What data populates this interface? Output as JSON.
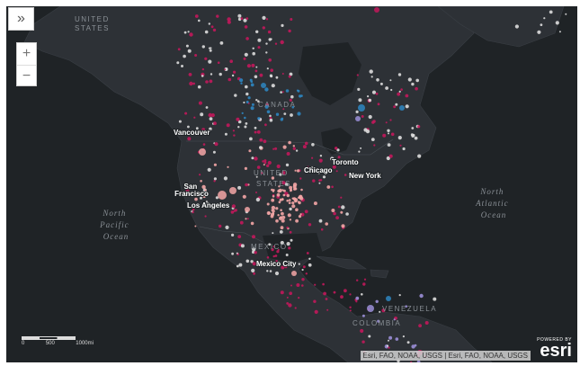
{
  "controls": {
    "expand_glyph": "»",
    "zoom_in_glyph": "+",
    "zoom_out_glyph": "−"
  },
  "countries": {
    "united_states_top": "UNITED STATES",
    "canada": "CANADA",
    "united_states": "UNITED STATES",
    "mexico": "MEXICO",
    "venezuela": "VENEZUELA",
    "colombia": "COLOMBIA"
  },
  "oceans": {
    "north_pacific": [
      "North",
      "Pacific",
      "Ocean"
    ],
    "north_atlantic": [
      "North",
      "Atlantic",
      "Ocean"
    ]
  },
  "cities": {
    "vancouver": "Vancouver",
    "san_francisco": [
      "San",
      "Francisco"
    ],
    "los_angeles": "Los Angeles",
    "chicago": "Chicago",
    "toronto": "Toronto",
    "new_york": "New York",
    "mexico_city": "Mexico City"
  },
  "scale": {
    "ticks": [
      "0",
      "500",
      "1000mi"
    ]
  },
  "attribution": "Esri, FAO, NOAA, USGS | Esri, FAO, NOAA, USGS",
  "logo": {
    "powered_by": "POWERED BY",
    "name": "esri"
  },
  "colors": {
    "basemap": "#1f2326",
    "land": "#2d3136",
    "dot_red": "#c2185b",
    "dot_pink": "#f4a6a6",
    "dot_blue": "#2e86c1",
    "dot_white": "#dddddd",
    "dot_violet": "#9b8fd8"
  }
}
